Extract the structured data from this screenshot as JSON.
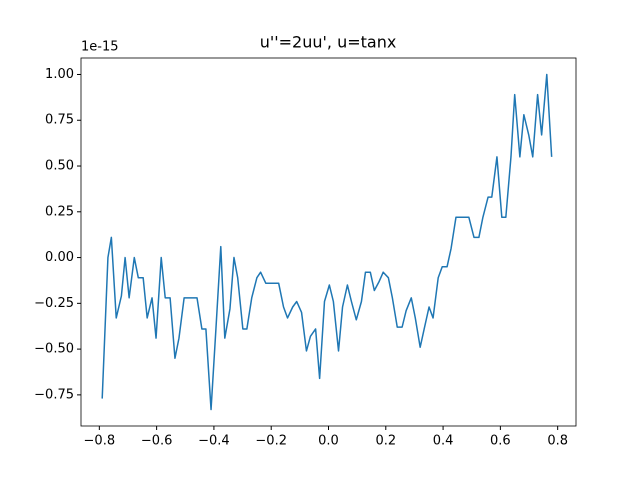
{
  "chart_data": {
    "type": "line",
    "title": "u''=2uu', u=tanx",
    "y_offset_label": "1e-15",
    "series": [
      {
        "color": "#1f77b4",
        "x": [
          -0.79,
          -0.77,
          -0.758,
          -0.741,
          -0.723,
          -0.71,
          -0.696,
          -0.678,
          -0.664,
          -0.647,
          -0.633,
          -0.616,
          -0.602,
          -0.584,
          -0.57,
          -0.553,
          -0.536,
          -0.522,
          -0.504,
          -0.459,
          -0.442,
          -0.428,
          -0.41,
          -0.393,
          -0.376,
          -0.362,
          -0.344,
          -0.33,
          -0.317,
          -0.299,
          -0.285,
          -0.268,
          -0.25,
          -0.237,
          -0.219,
          -0.174,
          -0.157,
          -0.143,
          -0.125,
          -0.111,
          -0.094,
          -0.077,
          -0.063,
          -0.045,
          -0.031,
          -0.014,
          0.003,
          0.017,
          0.035,
          0.049,
          0.066,
          0.08,
          0.097,
          0.115,
          0.129,
          0.146,
          0.16,
          0.177,
          0.191,
          0.209,
          0.223,
          0.24,
          0.257,
          0.271,
          0.289,
          0.303,
          0.32,
          0.334,
          0.351,
          0.365,
          0.383,
          0.397,
          0.414,
          0.428,
          0.445,
          0.49,
          0.508,
          0.525,
          0.539,
          0.557,
          0.57,
          0.588,
          0.605,
          0.619,
          0.637,
          0.65,
          0.668,
          0.682,
          0.699,
          0.713,
          0.73,
          0.744,
          0.762,
          0.779
        ],
        "values": [
          -0.77,
          0,
          0.11,
          -0.33,
          -0.21,
          0,
          -0.22,
          0,
          -0.11,
          -0.11,
          -0.33,
          -0.22,
          -0.44,
          0,
          -0.22,
          -0.22,
          -0.55,
          -0.44,
          -0.22,
          -0.22,
          -0.39,
          -0.39,
          -0.83,
          -0.39,
          0.06,
          -0.44,
          -0.28,
          0,
          -0.11,
          -0.39,
          -0.39,
          -0.22,
          -0.11,
          -0.08,
          -0.14,
          -0.14,
          -0.27,
          -0.33,
          -0.27,
          -0.24,
          -0.3,
          -0.51,
          -0.43,
          -0.39,
          -0.66,
          -0.24,
          -0.15,
          -0.24,
          -0.51,
          -0.27,
          -0.15,
          -0.24,
          -0.34,
          -0.24,
          -0.08,
          -0.08,
          -0.18,
          -0.13,
          -0.08,
          -0.11,
          -0.22,
          -0.38,
          -0.38,
          -0.29,
          -0.22,
          -0.33,
          -0.49,
          -0.39,
          -0.27,
          -0.33,
          -0.11,
          -0.05,
          -0.05,
          0.05,
          0.22,
          0.22,
          0.11,
          0.11,
          0.22,
          0.33,
          0.33,
          0.55,
          0.22,
          0.22,
          0.55,
          0.89,
          0.55,
          0.78,
          0.67,
          0.55,
          0.89,
          0.67,
          1.0,
          0.55
        ]
      }
    ],
    "xlim": [
      -0.864,
      0.864
    ],
    "ylim": [
      -0.92,
      1.09
    ],
    "xticks": [
      {
        "value": -0.8,
        "label": "−0.8"
      },
      {
        "value": -0.6,
        "label": "−0.6"
      },
      {
        "value": -0.4,
        "label": "−0.4"
      },
      {
        "value": -0.2,
        "label": "−0.2"
      },
      {
        "value": 0,
        "label": "0.0"
      },
      0.2,
      0.4,
      0.6,
      0.8
    ],
    "yticks": [
      {
        "value": -0.75,
        "label": "−0.75"
      },
      {
        "value": -0.5,
        "label": "−0.50"
      },
      {
        "value": -0.25,
        "label": "−0.25"
      },
      {
        "value": 0,
        "label": "0.00"
      },
      0.25,
      {
        "value": 0.5,
        "label": "0.50"
      },
      0.75,
      {
        "value": 1,
        "label": "1.00"
      }
    ]
  }
}
